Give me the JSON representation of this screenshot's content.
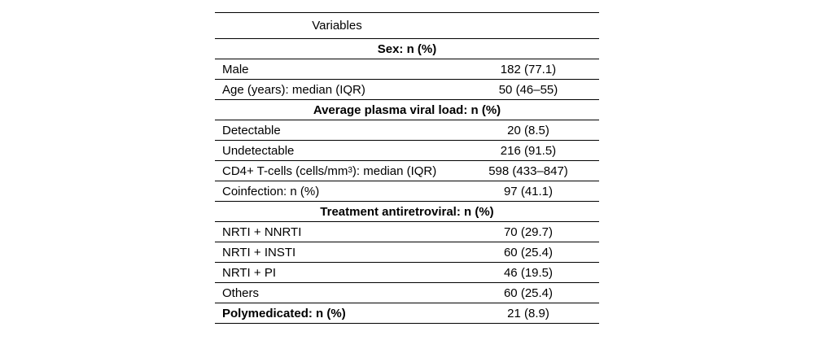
{
  "table": {
    "header": "Variables",
    "rows": [
      {
        "section": "Sex: n (%)"
      },
      {
        "label": "Male",
        "value": "182 (77.1)"
      },
      {
        "label": "Age (years): median (IQR)",
        "value": "50 (46–55)"
      },
      {
        "section": "Average plasma viral load: n (%)"
      },
      {
        "label": "Detectable",
        "value": "20 (8.5)"
      },
      {
        "label": "Undetectable",
        "value": "216 (91.5)"
      },
      {
        "label": "CD4+ T-cells (cells/mm",
        "label_sup": "3",
        "label_after": "): median (IQR)",
        "value": "598 (433–847)"
      },
      {
        "label": "Coinfection: n (%)",
        "value": "97 (41.1)"
      },
      {
        "section": "Treatment antiretroviral: n (%)"
      },
      {
        "label": "NRTI + NNRTI",
        "value": "70 (29.7)"
      },
      {
        "label": "NRTI + INSTI",
        "value": "60 (25.4)"
      },
      {
        "label": "NRTI + PI",
        "value": "46 (19.5)"
      },
      {
        "label": "Others",
        "value": "60 (25.4)"
      },
      {
        "label": "Polymedicated: n (%)",
        "value": "21 (8.9)",
        "bold": true
      }
    ]
  }
}
